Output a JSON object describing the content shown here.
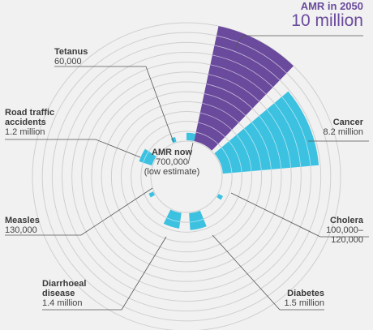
{
  "colors": {
    "background": "#f1f1f1",
    "amr": "#6a4a9c",
    "other": "#3cc1e0",
    "ring": "#ffffff",
    "leader": "#555555"
  },
  "chart_data": {
    "type": "radial-bar",
    "unit": "deaths per year",
    "categories": [
      {
        "name": "AMR in 2050",
        "label": "10 million",
        "value": 10000000,
        "color_key": "amr"
      },
      {
        "name": "Cancer",
        "label": "8.2 million",
        "value": 8200000,
        "color_key": "other"
      },
      {
        "name": "Cholera",
        "label": "100,000–\n120,000",
        "value": 110000,
        "color_key": "other"
      },
      {
        "name": "Diabetes",
        "label": "1.5 million",
        "value": 1500000,
        "color_key": "other"
      },
      {
        "name": "Diarrhoeal disease",
        "label": "1.4 million",
        "value": 1400000,
        "color_key": "other"
      },
      {
        "name": "Measles",
        "label": "130,000",
        "value": 130000,
        "color_key": "other"
      },
      {
        "name": "Road traffic accidents",
        "label": "1.2 million",
        "value": 1200000,
        "color_key": "other"
      },
      {
        "name": "Tetanus",
        "label": "60,000",
        "value": 60000,
        "color_key": "other"
      },
      {
        "name": "AMR now",
        "label": "700,000\n(low estimate)",
        "value": 700000,
        "color_key": "other"
      }
    ]
  },
  "labels": {
    "amr2050": {
      "name": "AMR in 2050",
      "value": "10 million"
    },
    "cancer": {
      "name": "Cancer",
      "value": "8.2 million"
    },
    "cholera": {
      "name": "Cholera",
      "value1": "100,000–",
      "value2": "120,000"
    },
    "diabetes": {
      "name": "Diabetes",
      "value": "1.5 million"
    },
    "diarrhoeal": {
      "name1": "Diarrhoeal",
      "name2": "disease",
      "value": "1.4 million"
    },
    "measles": {
      "name": "Measles",
      "value": "130,000"
    },
    "road": {
      "name1": "Road traffic",
      "name2": "accidents",
      "value": "1.2 million"
    },
    "tetanus": {
      "name": "Tetanus",
      "value": "60,000"
    },
    "amrnow": {
      "name": "AMR now",
      "value1": "700,000",
      "value2": "(low estimate)"
    }
  }
}
